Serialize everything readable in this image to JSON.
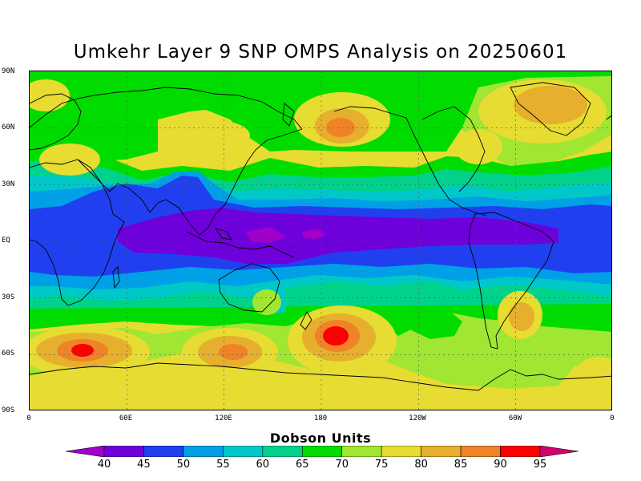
{
  "title": "Umkehr Layer 9 SNP OMPS Analysis on 20250601",
  "lat_labels": [
    "90N",
    "60N",
    "30N",
    "EQ",
    "30S",
    "60S",
    "90S"
  ],
  "lon_labels": [
    "0",
    "60E",
    "120E",
    "180",
    "120W",
    "60W",
    "0"
  ],
  "colorbar": {
    "title": "Dobson Units",
    "ticks": [
      "40",
      "45",
      "50",
      "55",
      "60",
      "65",
      "70",
      "75",
      "80",
      "85",
      "90",
      "95"
    ],
    "colors": [
      "#a000c8",
      "#6e00dc",
      "#2040f0",
      "#00a0e6",
      "#00c8c8",
      "#00d28c",
      "#00dc00",
      "#a0e632",
      "#e6dc32",
      "#e6af2d",
      "#f08228",
      "#fa0000",
      "#d2006e"
    ]
  }
}
